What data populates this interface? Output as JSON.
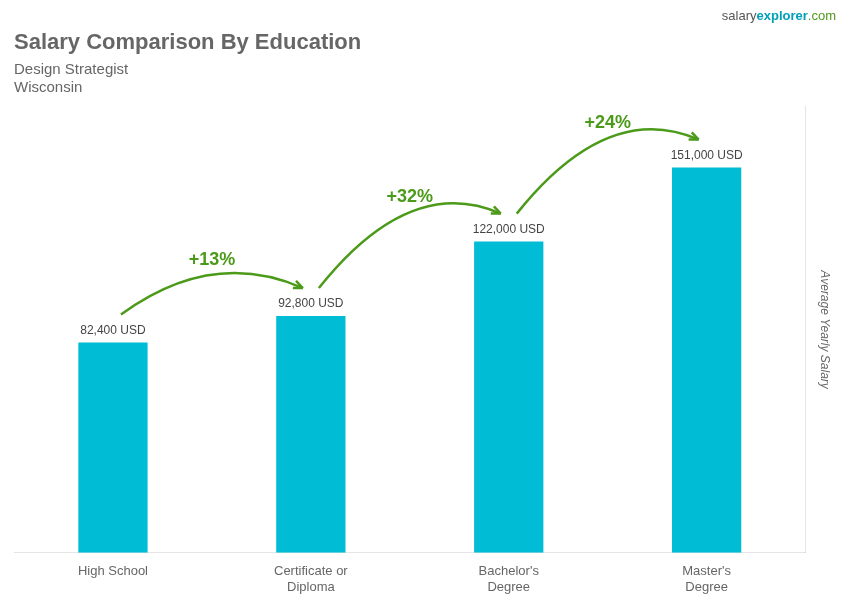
{
  "chart_data": {
    "type": "bar",
    "title": "Salary Comparison By Education",
    "subtitle": [
      "Design Strategist",
      "Wisconsin"
    ],
    "ylabel": "Average Yearly Salary",
    "categories": [
      "High School",
      "Certificate or\nDiploma",
      "Bachelor's\nDegree",
      "Master's\nDegree"
    ],
    "values": [
      82400,
      92800,
      122000,
      151000
    ],
    "value_labels": [
      "82,400 USD",
      "92,800 USD",
      "122,000 USD",
      "151,000 USD"
    ],
    "data_labels": true,
    "color": "#00bcd4",
    "ylim": [
      0,
      175000
    ],
    "grid": false,
    "tick_labels": "x",
    "annotations": [
      "+13%",
      "+32%",
      "+24%"
    ],
    "source": [
      "salary",
      "explorer",
      ".com"
    ]
  }
}
